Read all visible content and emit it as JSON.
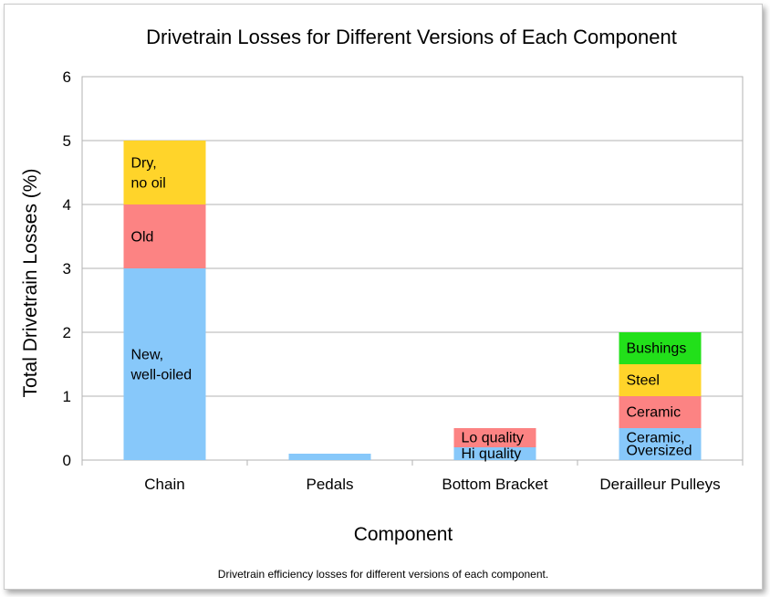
{
  "chart_data": {
    "type": "bar",
    "stacked": true,
    "title": "Drivetrain Losses for Different Versions of Each Component",
    "xlabel": "Component",
    "ylabel": "Total Drivetrain Losses (%)",
    "ylim": [
      0,
      6
    ],
    "yticks": [
      "0",
      "1",
      "2",
      "3",
      "4",
      "5",
      "6"
    ],
    "grid": true,
    "categories": [
      "Chain",
      "Pedals",
      "Bottom Bracket",
      "Derailleur Pulleys"
    ],
    "bars": [
      {
        "category": "Chain",
        "segments": [
          {
            "label": [
              "New,",
              "well-oiled"
            ],
            "value": 3.0,
            "color": "#87c8fa"
          },
          {
            "label": [
              "Old"
            ],
            "value": 1.0,
            "color": "#fc8383"
          },
          {
            "label": [
              "Dry,",
              "no oil"
            ],
            "value": 1.0,
            "color": "#ffd42a"
          }
        ]
      },
      {
        "category": "Pedals",
        "segments": [
          {
            "label": [],
            "value": 0.1,
            "color": "#87c8fa"
          }
        ]
      },
      {
        "category": "Bottom Bracket",
        "segments": [
          {
            "label": [
              "Hi quality"
            ],
            "value": 0.2,
            "color": "#87c8fa"
          },
          {
            "label": [
              "Lo quality"
            ],
            "value": 0.3,
            "color": "#fc8383"
          }
        ]
      },
      {
        "category": "Derailleur Pulleys",
        "segments": [
          {
            "label": [
              "Ceramic,",
              "Oversized"
            ],
            "value": 0.5,
            "color": "#87c8fa"
          },
          {
            "label": [
              "Ceramic"
            ],
            "value": 0.5,
            "color": "#fc8383"
          },
          {
            "label": [
              "Steel"
            ],
            "value": 0.5,
            "color": "#ffd42a"
          },
          {
            "label": [
              "Bushings"
            ],
            "value": 0.5,
            "color": "#22e01a"
          }
        ]
      }
    ]
  },
  "caption": "Drivetrain efficiency losses for different versions of each component."
}
